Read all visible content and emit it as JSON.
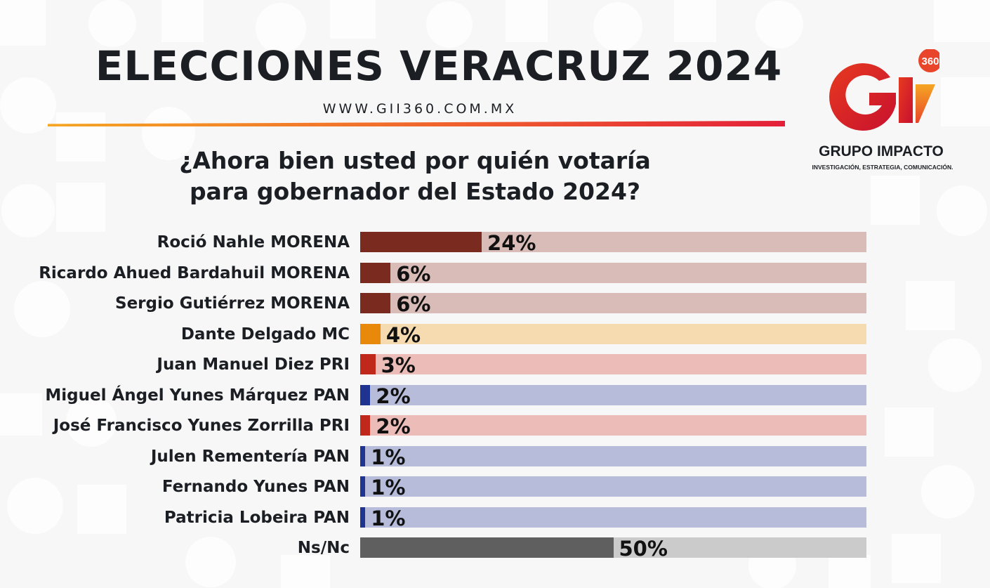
{
  "header": {
    "title": "ELECCIONES VERACRUZ 2024",
    "website": "WWW.GII360.COM.MX"
  },
  "logo": {
    "mark": "GI",
    "badge": "360",
    "brand": "GRUPO IMPACTO",
    "tagline": "INVESTIGACIÓN, ESTRATEGIA, COMUNICACIÓN."
  },
  "question": {
    "line1": "¿Ahora bien usted por quién votaría",
    "line2": "para gobernador del Estado 2024?"
  },
  "colors": {
    "morena": "#7a2a1f",
    "morena_track": "#d9bcb7",
    "mc": "#e8890b",
    "mc_track": "#f6dbb0",
    "pri": "#c0281c",
    "pri_track": "#ecbcb8",
    "pan": "#1f3490",
    "pan_track": "#b6bcd9",
    "nsnc": "#5f5f5f",
    "nsnc_track": "#cbcbcb"
  },
  "chart_data": {
    "type": "bar",
    "orientation": "horizontal",
    "xlim": [
      0,
      100
    ],
    "unit": "%",
    "categories": [
      "Roció Nahle MORENA",
      "Ricardo Ahued Bardahuil MORENA",
      "Sergio Gutiérrez MORENA",
      "Dante Delgado MC",
      "Juan Manuel Diez PRI",
      "Miguel Ángel Yunes Márquez PAN",
      "José Francisco Yunes Zorrilla PRI",
      "Julen Rementería PAN",
      "Fernando Yunes PAN",
      "Patricia Lobeira PAN",
      "Ns/Nc"
    ],
    "values": [
      24,
      6,
      6,
      4,
      3,
      2,
      2,
      1,
      1,
      1,
      50
    ],
    "value_labels": [
      "24%",
      "6%",
      "6%",
      "4%",
      "3%",
      "2%",
      "2%",
      "1%",
      "1%",
      "1%",
      "50%"
    ],
    "bar_colors": [
      "morena",
      "morena",
      "morena",
      "mc",
      "pri",
      "pan",
      "pri",
      "pan",
      "pan",
      "pan",
      "nsnc"
    ]
  }
}
